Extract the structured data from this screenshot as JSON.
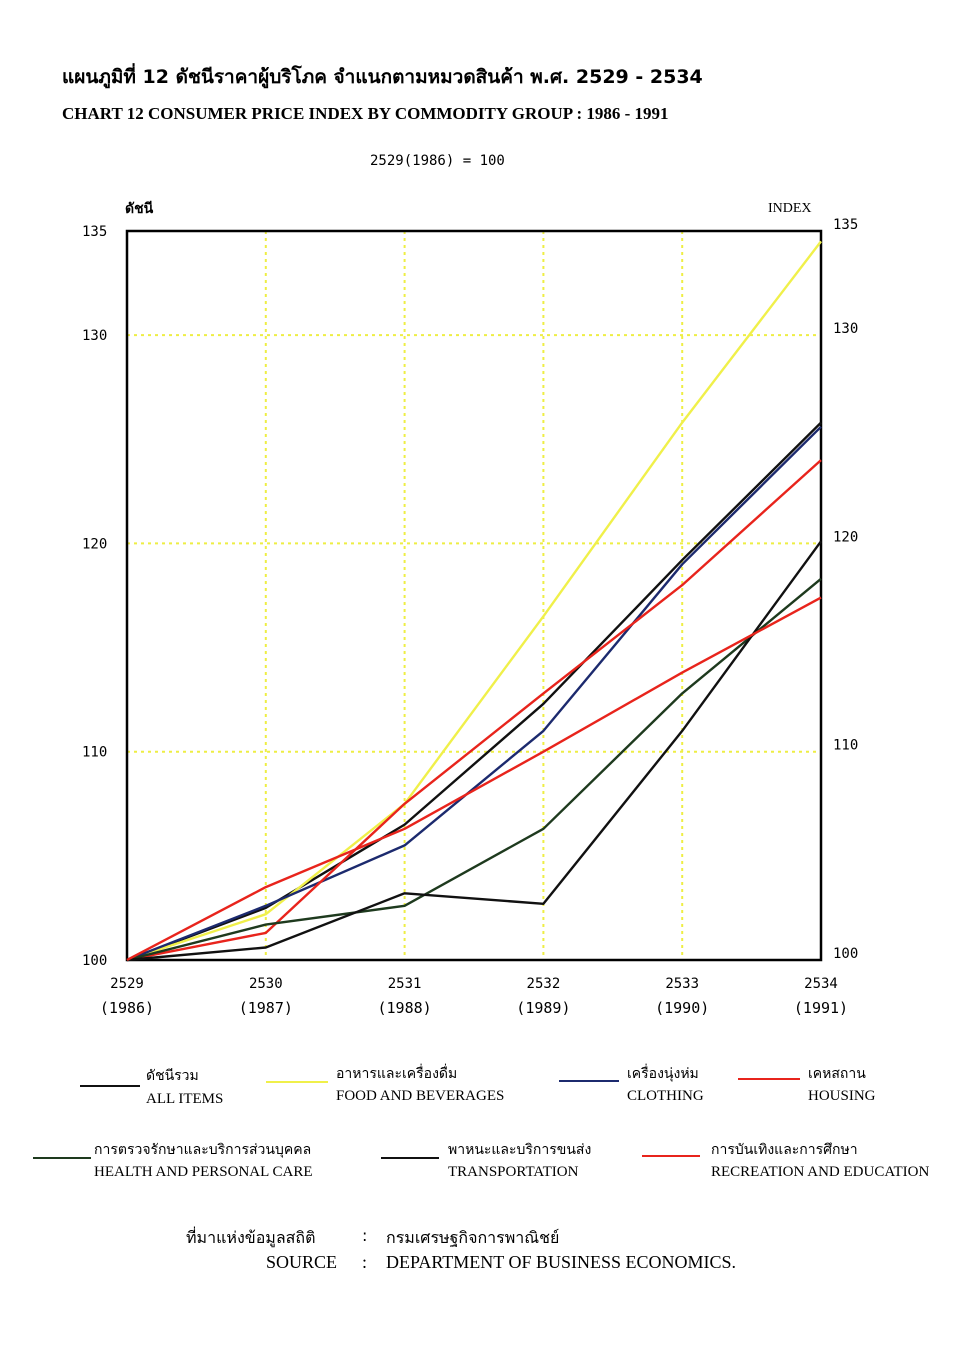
{
  "header": {
    "title_th": "แผนภูมิที่  12  ดัชนีราคาผู้บริโภค  จำแนกตามหมวดสินค้า  พ.ศ.  2529  -  2534",
    "title_en": "CHART    12  CONSUMER PRICE INDEX BY COMMODITY GROUP  : 1986  -  1991",
    "base_note": "2529(1986) = 100"
  },
  "colors": {
    "black": "#111111",
    "yellow": "#f0f04a",
    "navy": "#1c2a6e",
    "red": "#e8241c",
    "darkgreen": "#1e3a1e",
    "grid": "#eeee44"
  },
  "chart_data": {
    "type": "line",
    "ylabel_left": "ดัชนี",
    "ylabel_right": "INDEX",
    "ylim": [
      100,
      135
    ],
    "y_ticks_left": [
      "135",
      "130",
      "120",
      "110",
      "100"
    ],
    "y_ticks_right": [
      "135",
      "130",
      "120",
      "110",
      "100"
    ],
    "y_tick_values": [
      135,
      130,
      120,
      110,
      100
    ],
    "x_years_be": [
      "2529",
      "2530",
      "2531",
      "2532",
      "2533",
      "2534"
    ],
    "x_years_ad": [
      "(1986)",
      "(1987)",
      "(1988)",
      "(1989)",
      "(1990)",
      "(1991)"
    ],
    "grid": true,
    "series": [
      {
        "name_th": "ดัชนีรวม",
        "name_en": "ALL ITEMS",
        "color": "#111111",
        "values": [
          100,
          102.5,
          106.5,
          112.3,
          119.2,
          125.8
        ]
      },
      {
        "name_th": "อาหารและเครื่องดื่ม",
        "name_en": "FOOD AND BEVERAGES",
        "color": "#f0f04a",
        "values": [
          100,
          102.2,
          107.5,
          116.5,
          125.8,
          134.5
        ]
      },
      {
        "name_th": "เครื่องนุ่งห่ม",
        "name_en": "CLOTHING",
        "color": "#1c2a6e",
        "values": [
          100,
          102.6,
          105.5,
          111.0,
          119.0,
          125.6
        ]
      },
      {
        "name_th": "เคหสถาน",
        "name_en": "HOUSING",
        "color": "#e8241c",
        "values": [
          100,
          101.3,
          107.5,
          112.8,
          118.0,
          124.0
        ]
      },
      {
        "name_th": "การตรวจรักษาและบริการส่วนบุคคล",
        "name_en": "HEALTH AND PERSONAL CARE",
        "color": "#1e3a1e",
        "values": [
          100,
          101.7,
          102.6,
          106.3,
          112.8,
          118.3
        ]
      },
      {
        "name_th": "พาหนะและบริการขนส่ง",
        "name_en": "TRANSPORTATION",
        "color": "#111111",
        "values": [
          100,
          100.6,
          103.2,
          102.7,
          111.0,
          120.1
        ]
      },
      {
        "name_th": "การบันเทิงและการศึกษา",
        "name_en": "RECREATION AND EDUCATION",
        "color": "#e8241c",
        "values": [
          100,
          103.5,
          106.3,
          110.0,
          113.8,
          117.4
        ]
      }
    ]
  },
  "source": {
    "label_th": "ที่มาแห่งข้อมูลสถิติ",
    "label_en": "SOURCE",
    "separator": ":",
    "value_th": "กรมเศรษฐกิจการพาณิชย์",
    "value_en": "DEPARTMENT OF BUSINESS ECONOMICS."
  }
}
